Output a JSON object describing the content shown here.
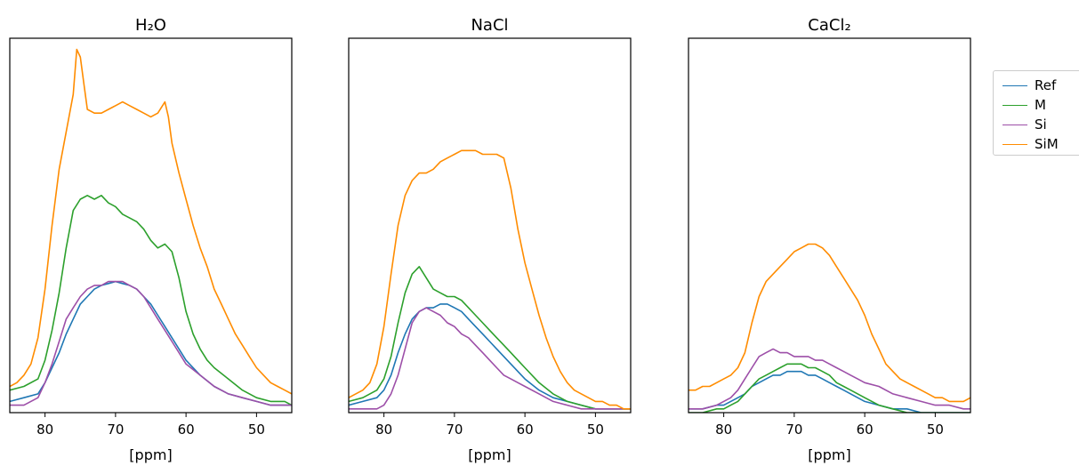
{
  "chart_data": [
    {
      "type": "line",
      "title": "H₂O",
      "xlabel": "[ppm]",
      "xlim": [
        85,
        45
      ],
      "xticks": [
        80,
        70,
        60,
        50
      ],
      "ylim": [
        0,
        1.0
      ],
      "series": [
        {
          "name": "Ref",
          "color": "#1f77b4",
          "x": [
            85,
            83,
            81,
            80,
            79,
            78,
            77,
            76,
            75,
            74,
            73,
            72,
            71,
            70,
            69,
            68,
            67,
            66,
            65,
            64,
            63,
            62,
            61,
            60,
            58,
            56,
            54,
            52,
            50,
            48,
            46,
            45
          ],
          "y": [
            0.03,
            0.04,
            0.05,
            0.08,
            0.12,
            0.16,
            0.21,
            0.25,
            0.29,
            0.31,
            0.33,
            0.34,
            0.345,
            0.35,
            0.345,
            0.34,
            0.33,
            0.31,
            0.29,
            0.26,
            0.23,
            0.2,
            0.17,
            0.14,
            0.1,
            0.07,
            0.05,
            0.04,
            0.03,
            0.02,
            0.02,
            0.02
          ]
        },
        {
          "name": "M",
          "color": "#2ca02c",
          "x": [
            85,
            83,
            81,
            80,
            79,
            78,
            77,
            76,
            75,
            74,
            73,
            72,
            71,
            70,
            69,
            68,
            67,
            66,
            65,
            64,
            63,
            62,
            61,
            60,
            59,
            58,
            57,
            56,
            54,
            52,
            50,
            48,
            46,
            45
          ],
          "y": [
            0.06,
            0.07,
            0.09,
            0.14,
            0.22,
            0.32,
            0.44,
            0.54,
            0.57,
            0.58,
            0.57,
            0.58,
            0.56,
            0.55,
            0.53,
            0.52,
            0.51,
            0.49,
            0.46,
            0.44,
            0.45,
            0.43,
            0.36,
            0.27,
            0.21,
            0.17,
            0.14,
            0.12,
            0.09,
            0.06,
            0.04,
            0.03,
            0.03,
            0.02
          ]
        },
        {
          "name": "Si",
          "color": "#9d4fa8",
          "x": [
            85,
            83,
            81,
            80,
            79,
            78,
            77,
            76,
            75,
            74,
            73,
            72,
            71,
            70,
            69,
            68,
            67,
            66,
            65,
            64,
            63,
            62,
            61,
            60,
            58,
            56,
            54,
            52,
            50,
            48,
            46,
            45
          ],
          "y": [
            0.02,
            0.02,
            0.04,
            0.08,
            0.13,
            0.19,
            0.25,
            0.28,
            0.31,
            0.33,
            0.34,
            0.34,
            0.35,
            0.35,
            0.35,
            0.34,
            0.33,
            0.31,
            0.28,
            0.25,
            0.22,
            0.19,
            0.16,
            0.13,
            0.1,
            0.07,
            0.05,
            0.04,
            0.03,
            0.02,
            0.02,
            0.02
          ]
        },
        {
          "name": "SiM",
          "color": "#ff8c00",
          "x": [
            85,
            84,
            83,
            82,
            81,
            80,
            79,
            78,
            77,
            76,
            75.5,
            75,
            74.5,
            74,
            73,
            72,
            71,
            70,
            69,
            68,
            67,
            66,
            65,
            64,
            63,
            62.5,
            62,
            61,
            60,
            59,
            58,
            57,
            56,
            55,
            54,
            53,
            52,
            51,
            50,
            49,
            48,
            47,
            46,
            45
          ],
          "y": [
            0.07,
            0.08,
            0.1,
            0.13,
            0.2,
            0.33,
            0.5,
            0.65,
            0.75,
            0.85,
            0.97,
            0.95,
            0.88,
            0.81,
            0.8,
            0.8,
            0.81,
            0.82,
            0.83,
            0.82,
            0.81,
            0.8,
            0.79,
            0.8,
            0.83,
            0.79,
            0.72,
            0.64,
            0.57,
            0.5,
            0.44,
            0.39,
            0.33,
            0.29,
            0.25,
            0.21,
            0.18,
            0.15,
            0.12,
            0.1,
            0.08,
            0.07,
            0.06,
            0.05
          ]
        }
      ]
    },
    {
      "type": "line",
      "title": "NaCl",
      "xlabel": "[ppm]",
      "xlim": [
        85,
        45
      ],
      "xticks": [
        80,
        70,
        60,
        50
      ],
      "ylim": [
        0,
        1.0
      ],
      "series": [
        {
          "name": "Ref",
          "color": "#1f77b4",
          "x": [
            85,
            83,
            81,
            80,
            79,
            78,
            77,
            76,
            75,
            74,
            73,
            72,
            71,
            70,
            69,
            68,
            67,
            66,
            65,
            64,
            63,
            62,
            61,
            60,
            58,
            56,
            54,
            52,
            50,
            48,
            46,
            45
          ],
          "y": [
            0.02,
            0.03,
            0.04,
            0.06,
            0.1,
            0.16,
            0.21,
            0.25,
            0.27,
            0.28,
            0.28,
            0.29,
            0.29,
            0.28,
            0.27,
            0.25,
            0.23,
            0.21,
            0.19,
            0.17,
            0.15,
            0.13,
            0.11,
            0.09,
            0.06,
            0.04,
            0.03,
            0.02,
            0.01,
            0.01,
            0.01,
            0.01
          ]
        },
        {
          "name": "M",
          "color": "#2ca02c",
          "x": [
            85,
            83,
            81,
            80,
            79,
            78,
            77,
            76,
            75,
            74,
            73,
            72,
            71,
            70,
            69,
            68,
            67,
            66,
            65,
            64,
            63,
            62,
            61,
            60,
            58,
            56,
            54,
            52,
            50,
            48,
            46,
            45
          ],
          "y": [
            0.03,
            0.04,
            0.06,
            0.09,
            0.15,
            0.24,
            0.32,
            0.37,
            0.39,
            0.36,
            0.33,
            0.32,
            0.31,
            0.31,
            0.3,
            0.28,
            0.26,
            0.24,
            0.22,
            0.2,
            0.18,
            0.16,
            0.14,
            0.12,
            0.08,
            0.05,
            0.03,
            0.02,
            0.01,
            0.01,
            0.01,
            0.01
          ]
        },
        {
          "name": "Si",
          "color": "#9d4fa8",
          "x": [
            85,
            83,
            81,
            80,
            79,
            78,
            77,
            76,
            75,
            74,
            73,
            72,
            71,
            70,
            69,
            68,
            67,
            66,
            65,
            64,
            63,
            62,
            61,
            60,
            58,
            56,
            54,
            52,
            50,
            48,
            46,
            45
          ],
          "y": [
            0.01,
            0.01,
            0.01,
            0.02,
            0.05,
            0.1,
            0.17,
            0.24,
            0.27,
            0.28,
            0.27,
            0.26,
            0.24,
            0.23,
            0.21,
            0.2,
            0.18,
            0.16,
            0.14,
            0.12,
            0.1,
            0.09,
            0.08,
            0.07,
            0.05,
            0.03,
            0.02,
            0.01,
            0.01,
            0.01,
            0.01,
            0.01
          ]
        },
        {
          "name": "SiM",
          "color": "#ff8c00",
          "x": [
            85,
            84,
            83,
            82,
            81,
            80,
            79,
            78,
            77,
            76,
            75,
            74,
            73,
            72,
            71,
            70,
            69,
            68,
            67,
            66,
            65,
            64,
            63,
            62,
            61,
            60,
            59,
            58,
            57,
            56,
            55,
            54,
            53,
            52,
            51,
            50,
            49,
            48,
            47,
            46,
            45
          ],
          "y": [
            0.04,
            0.05,
            0.06,
            0.08,
            0.13,
            0.23,
            0.37,
            0.5,
            0.58,
            0.62,
            0.64,
            0.64,
            0.65,
            0.67,
            0.68,
            0.69,
            0.7,
            0.7,
            0.7,
            0.69,
            0.69,
            0.69,
            0.68,
            0.6,
            0.49,
            0.4,
            0.33,
            0.26,
            0.2,
            0.15,
            0.11,
            0.08,
            0.06,
            0.05,
            0.04,
            0.03,
            0.03,
            0.02,
            0.02,
            0.01,
            0.01
          ]
        }
      ]
    },
    {
      "type": "line",
      "title": "CaCl₂",
      "xlabel": "[ppm]",
      "xlim": [
        85,
        45
      ],
      "xticks": [
        80,
        70,
        60,
        50
      ],
      "ylim": [
        0,
        1.0
      ],
      "series": [
        {
          "name": "Ref",
          "color": "#1f77b4",
          "x": [
            85,
            83,
            81,
            80,
            79,
            78,
            77,
            76,
            75,
            74,
            73,
            72,
            71,
            70,
            69,
            68,
            67,
            66,
            65,
            64,
            63,
            62,
            61,
            60,
            58,
            56,
            54,
            52,
            50,
            48,
            46,
            45
          ],
          "y": [
            0.01,
            0.01,
            0.02,
            0.02,
            0.03,
            0.04,
            0.05,
            0.07,
            0.08,
            0.09,
            0.1,
            0.1,
            0.11,
            0.11,
            0.11,
            0.1,
            0.1,
            0.09,
            0.08,
            0.07,
            0.06,
            0.05,
            0.04,
            0.03,
            0.02,
            0.01,
            0.01,
            0.0,
            0.0,
            0.0,
            0.0,
            0.0
          ]
        },
        {
          "name": "M",
          "color": "#2ca02c",
          "x": [
            85,
            83,
            81,
            80,
            79,
            78,
            77,
            76,
            75,
            74,
            73,
            72,
            71,
            70,
            69,
            68,
            67,
            66,
            65,
            64,
            63,
            62,
            61,
            60,
            58,
            56,
            54,
            52,
            50,
            48,
            46,
            45
          ],
          "y": [
            0.0,
            0.0,
            0.01,
            0.01,
            0.02,
            0.03,
            0.05,
            0.07,
            0.09,
            0.1,
            0.11,
            0.12,
            0.13,
            0.13,
            0.13,
            0.12,
            0.12,
            0.11,
            0.1,
            0.08,
            0.07,
            0.06,
            0.05,
            0.04,
            0.02,
            0.01,
            0.0,
            0.0,
            0.0,
            0.0,
            0.0,
            0.0
          ]
        },
        {
          "name": "Si",
          "color": "#9d4fa8",
          "x": [
            85,
            83,
            81,
            80,
            79,
            78,
            77,
            76,
            75,
            74,
            73,
            72,
            71,
            70,
            69,
            68,
            67,
            66,
            65,
            64,
            63,
            62,
            61,
            60,
            58,
            56,
            54,
            52,
            50,
            48,
            46,
            45
          ],
          "y": [
            0.01,
            0.01,
            0.02,
            0.03,
            0.04,
            0.06,
            0.09,
            0.12,
            0.15,
            0.16,
            0.17,
            0.16,
            0.16,
            0.15,
            0.15,
            0.15,
            0.14,
            0.14,
            0.13,
            0.12,
            0.11,
            0.1,
            0.09,
            0.08,
            0.07,
            0.05,
            0.04,
            0.03,
            0.02,
            0.02,
            0.01,
            0.01
          ]
        },
        {
          "name": "SiM",
          "color": "#ff8c00",
          "x": [
            85,
            84,
            83,
            82,
            81,
            80,
            79,
            78,
            77,
            76,
            75,
            74,
            73,
            72,
            71,
            70,
            69,
            68,
            67,
            66,
            65,
            64,
            63,
            62,
            61,
            60,
            59,
            58,
            57,
            56,
            55,
            54,
            53,
            52,
            51,
            50,
            49,
            48,
            47,
            46,
            45
          ],
          "y": [
            0.06,
            0.06,
            0.07,
            0.07,
            0.08,
            0.09,
            0.1,
            0.12,
            0.16,
            0.24,
            0.31,
            0.35,
            0.37,
            0.39,
            0.41,
            0.43,
            0.44,
            0.45,
            0.45,
            0.44,
            0.42,
            0.39,
            0.36,
            0.33,
            0.3,
            0.26,
            0.21,
            0.17,
            0.13,
            0.11,
            0.09,
            0.08,
            0.07,
            0.06,
            0.05,
            0.04,
            0.04,
            0.03,
            0.03,
            0.03,
            0.04
          ]
        }
      ]
    }
  ],
  "legend": {
    "placement": "right",
    "items": [
      {
        "name": "Ref",
        "color": "#1f77b4"
      },
      {
        "name": "M",
        "color": "#2ca02c"
      },
      {
        "name": "Si",
        "color": "#9d4fa8"
      },
      {
        "name": "SiM",
        "color": "#ff8c00"
      }
    ]
  }
}
